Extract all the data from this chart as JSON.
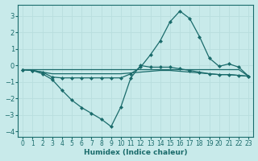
{
  "title": "",
  "xlabel": "Humidex (Indice chaleur)",
  "ylabel": "",
  "bg_color": "#c8eaea",
  "grid_color": "#d4f0f0",
  "line_color": "#1a6b6b",
  "xlim": [
    -0.5,
    23.5
  ],
  "ylim": [
    -4.3,
    3.7
  ],
  "xticks": [
    0,
    1,
    2,
    3,
    4,
    5,
    6,
    7,
    8,
    9,
    10,
    11,
    12,
    13,
    14,
    15,
    16,
    17,
    18,
    19,
    20,
    21,
    22,
    23
  ],
  "yticks": [
    -4,
    -3,
    -2,
    -1,
    0,
    1,
    2,
    3
  ],
  "series": [
    {
      "x": [
        0,
        1,
        2,
        3,
        4,
        5,
        6,
        7,
        8,
        9,
        10,
        11,
        12,
        13,
        14,
        15,
        16,
        17,
        18,
        19,
        20,
        21,
        22,
        23
      ],
      "y": [
        -0.25,
        -0.3,
        -0.5,
        -0.85,
        -1.5,
        -2.1,
        -2.55,
        -2.9,
        -3.25,
        -3.7,
        -2.5,
        -0.75,
        0.0,
        -0.1,
        -0.1,
        -0.1,
        -0.2,
        -0.3,
        -0.4,
        -0.5,
        -0.55,
        -0.55,
        -0.6,
        -0.65
      ],
      "marker": "D",
      "markersize": 2.0,
      "linewidth": 0.9
    },
    {
      "x": [
        0,
        1,
        2,
        3,
        4,
        5,
        6,
        7,
        8,
        9,
        10,
        11,
        12,
        13,
        14,
        15,
        16,
        17,
        18,
        19,
        20,
        21,
        22,
        23
      ],
      "y": [
        -0.25,
        -0.25,
        -0.25,
        -0.25,
        -0.25,
        -0.25,
        -0.25,
        -0.25,
        -0.25,
        -0.25,
        -0.25,
        -0.25,
        -0.25,
        -0.25,
        -0.25,
        -0.25,
        -0.25,
        -0.25,
        -0.25,
        -0.25,
        -0.25,
        -0.25,
        -0.25,
        -0.65
      ],
      "marker": null,
      "markersize": 0,
      "linewidth": 0.9
    },
    {
      "x": [
        0,
        1,
        2,
        3,
        4,
        5,
        6,
        7,
        8,
        9,
        10,
        11,
        12,
        13,
        14,
        15,
        16,
        17,
        18,
        19,
        20,
        21,
        22,
        23
      ],
      "y": [
        -0.25,
        -0.3,
        -0.4,
        -0.5,
        -0.5,
        -0.5,
        -0.5,
        -0.5,
        -0.5,
        -0.5,
        -0.5,
        -0.45,
        -0.4,
        -0.35,
        -0.3,
        -0.3,
        -0.35,
        -0.4,
        -0.45,
        -0.5,
        -0.55,
        -0.55,
        -0.6,
        -0.65
      ],
      "marker": null,
      "markersize": 0,
      "linewidth": 0.9
    },
    {
      "x": [
        0,
        1,
        2,
        3,
        4,
        5,
        6,
        7,
        8,
        9,
        10,
        11,
        12,
        13,
        14,
        15,
        16,
        17,
        18,
        19,
        20,
        21,
        22,
        23
      ],
      "y": [
        -0.25,
        -0.3,
        -0.4,
        -0.7,
        -0.75,
        -0.75,
        -0.75,
        -0.75,
        -0.75,
        -0.75,
        -0.75,
        -0.5,
        -0.1,
        0.65,
        1.5,
        2.65,
        3.3,
        2.85,
        1.75,
        0.45,
        -0.05,
        0.1,
        -0.1,
        -0.65
      ],
      "marker": "D",
      "markersize": 2.0,
      "linewidth": 0.9
    }
  ]
}
